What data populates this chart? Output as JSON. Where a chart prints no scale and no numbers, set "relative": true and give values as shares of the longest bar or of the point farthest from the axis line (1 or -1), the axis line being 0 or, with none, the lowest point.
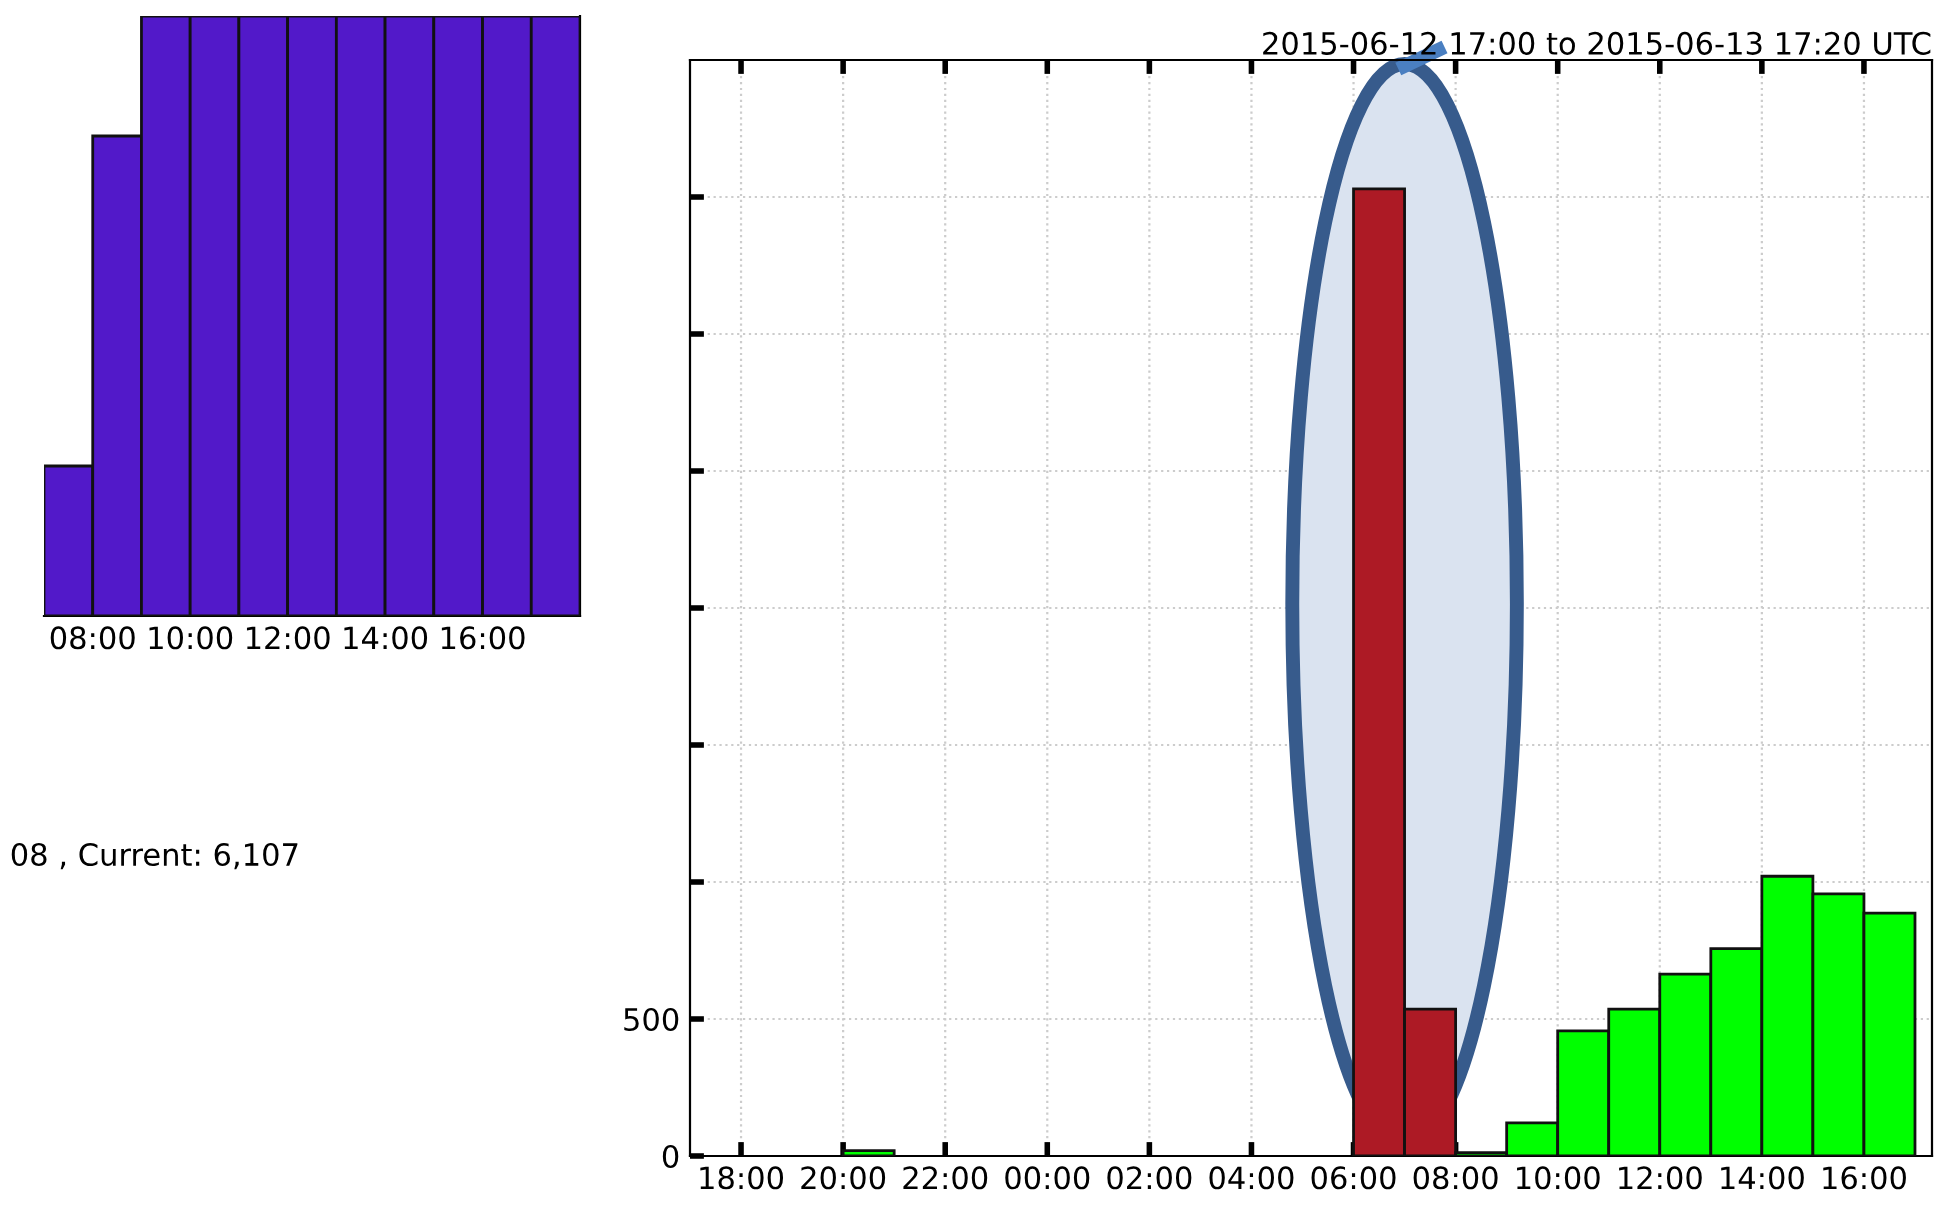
{
  "chart_data": [
    {
      "type": "bar",
      "relative": true,
      "x": [
        "2015-06-13T07:30",
        "2015-06-13T08:30",
        "2015-06-13T09:30",
        "2015-06-13T10:30",
        "2015-06-13T11:30",
        "2015-06-13T12:30",
        "2015-06-13T13:30",
        "2015-06-13T14:30",
        "2015-06-13T15:30",
        "2015-06-13T16:30",
        "2015-06-13T17:30"
      ],
      "values": [
        0.25,
        0.8,
        1,
        1,
        1,
        1,
        1,
        1,
        1,
        1,
        1
      ],
      "color": "#5219c9",
      "xlim": [
        "2015-06-13T07:00",
        "2015-06-13T18:00"
      ],
      "xticks": [
        {
          "value": "2015-06-13T08:00",
          "label": "08:00"
        },
        {
          "value": "2015-06-13T10:00",
          "label": "10:00"
        },
        {
          "value": "2015-06-13T12:00",
          "label": "12:00"
        },
        {
          "value": "2015-06-13T14:00",
          "label": "14:00"
        },
        {
          "value": "2015-06-13T16:00",
          "label": "16:00"
        }
      ],
      "grid": false
    },
    {
      "type": "histogram",
      "title": "2015-06-12 17:00 to 2015-06-13 17:20 UTC",
      "bins": [
        "2015-06-12T17:00",
        "2015-06-12T18:00",
        "2015-06-12T19:00",
        "2015-06-12T20:00",
        "2015-06-12T21:00",
        "2015-06-12T22:00",
        "2015-06-12T23:00",
        "2015-06-13T00:00",
        "2015-06-13T01:00",
        "2015-06-13T02:00",
        "2015-06-13T03:00",
        "2015-06-13T04:00",
        "2015-06-13T05:00",
        "2015-06-13T06:00",
        "2015-06-13T07:00",
        "2015-06-13T08:00",
        "2015-06-13T09:00",
        "2015-06-13T10:00",
        "2015-06-13T11:00",
        "2015-06-13T12:00",
        "2015-06-13T13:00",
        "2015-06-13T14:00",
        "2015-06-13T15:00",
        "2015-06-13T16:00",
        "2015-06-13T17:00"
      ],
      "values": [
        0,
        0,
        0,
        20,
        0,
        0,
        0,
        0,
        0,
        0,
        0,
        0,
        0,
        3530,
        536,
        12,
        121,
        457,
        536,
        664,
        757,
        1021,
        957,
        886
      ],
      "colors": [
        "#00ff00",
        "#00ff00",
        "#00ff00",
        "#00ff00",
        "#00ff00",
        "#00ff00",
        "#00ff00",
        "#00ff00",
        "#00ff00",
        "#00ff00",
        "#00ff00",
        "#00ff00",
        "#00ff00",
        "#ad1a25",
        "#ad1a25",
        "#00ff00",
        "#00ff00",
        "#00ff00",
        "#00ff00",
        "#00ff00",
        "#00ff00",
        "#00ff00",
        "#00ff00",
        "#00ff00"
      ],
      "xlim": [
        "2015-06-12T17:00",
        "2015-06-13T17:20"
      ],
      "ylim": [
        0,
        4000
      ],
      "xticks": [
        {
          "value": "2015-06-12T18:00",
          "label": "18:00"
        },
        {
          "value": "2015-06-12T20:00",
          "label": "20:00"
        },
        {
          "value": "2015-06-12T22:00",
          "label": "22:00"
        },
        {
          "value": "2015-06-13T00:00",
          "label": "00:00"
        },
        {
          "value": "2015-06-13T02:00",
          "label": "02:00"
        },
        {
          "value": "2015-06-13T04:00",
          "label": "04:00"
        },
        {
          "value": "2015-06-13T06:00",
          "label": "06:00"
        },
        {
          "value": "2015-06-13T08:00",
          "label": "08:00"
        },
        {
          "value": "2015-06-13T10:00",
          "label": "10:00"
        },
        {
          "value": "2015-06-13T12:00",
          "label": "12:00"
        },
        {
          "value": "2015-06-13T14:00",
          "label": "14:00"
        },
        {
          "value": "2015-06-13T16:00",
          "label": "16:00"
        }
      ],
      "yticks": [
        0,
        500,
        {
          "value": 1000,
          "label": null
        },
        {
          "value": 1500,
          "label": null
        },
        {
          "value": 2000,
          "label": null
        },
        {
          "value": 2500,
          "label": null
        },
        {
          "value": 3000,
          "label": null
        },
        {
          "value": 3500,
          "label": null
        }
      ],
      "grid": true,
      "annotations": [
        "08 , Current: 6,107"
      ]
    }
  ]
}
